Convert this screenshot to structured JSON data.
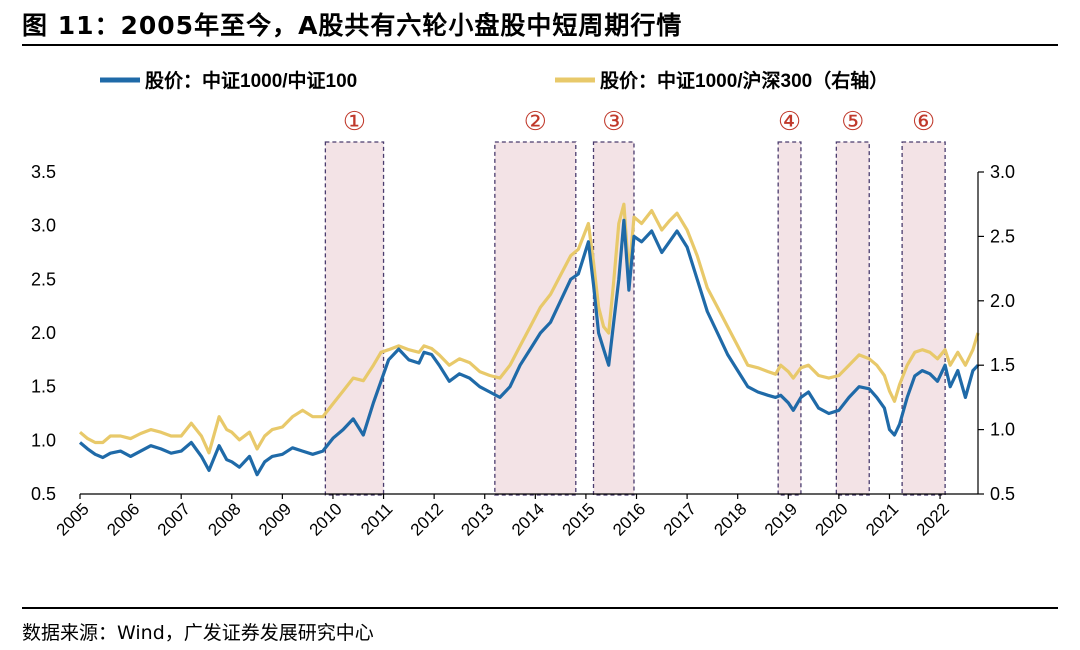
{
  "header": {
    "title": "图 11：2005年至今，A股共有六轮小盘股中短周期行情"
  },
  "footer": {
    "source": "数据来源：Wind，广发证券发展研究中心"
  },
  "colors": {
    "series1": "#1f6aa8",
    "series2": "#e8c96a",
    "highlight_fill": "#f3e3e6",
    "highlight_stroke": "#4a3c6e",
    "marker": "#c0392b"
  },
  "chart_data": {
    "type": "line",
    "title": "2005年至今，A股共有六轮小盘股中短周期行情",
    "x_ticks": [
      "2005",
      "2006",
      "2007",
      "2008",
      "2009",
      "2010",
      "2011",
      "2012",
      "2013",
      "2014",
      "2015",
      "2016",
      "2017",
      "2018",
      "2019",
      "2020",
      "2021",
      "2022"
    ],
    "x_range": [
      2005.0,
      2022.75
    ],
    "y_left": {
      "ticks": [
        "0.5",
        "1.0",
        "1.5",
        "2.0",
        "2.5",
        "3.0",
        "3.5"
      ],
      "range": [
        0.5,
        3.5
      ]
    },
    "y_right": {
      "ticks": [
        "0.5",
        "1.0",
        "1.5",
        "2.0",
        "2.5",
        "3.0"
      ],
      "range": [
        0.5,
        3.0
      ]
    },
    "legend": [
      {
        "label": "股价：中证1000/中证100",
        "axis": "left"
      },
      {
        "label": "股价：中证1000/沪深300（右轴）",
        "axis": "right"
      }
    ],
    "series": [
      {
        "name": "股价：中证1000/中证100",
        "axis": "left",
        "x": [
          2005.0,
          2005.15,
          2005.3,
          2005.45,
          2005.6,
          2005.8,
          2006.0,
          2006.2,
          2006.4,
          2006.6,
          2006.8,
          2007.0,
          2007.2,
          2007.4,
          2007.55,
          2007.75,
          2007.9,
          2008.0,
          2008.15,
          2008.35,
          2008.5,
          2008.65,
          2008.8,
          2009.0,
          2009.2,
          2009.4,
          2009.6,
          2009.8,
          2010.0,
          2010.2,
          2010.4,
          2010.6,
          2010.8,
          2010.95,
          2011.1,
          2011.3,
          2011.5,
          2011.7,
          2011.8,
          2011.95,
          2012.1,
          2012.3,
          2012.5,
          2012.7,
          2012.9,
          2013.1,
          2013.3,
          2013.5,
          2013.7,
          2013.9,
          2014.1,
          2014.3,
          2014.5,
          2014.7,
          2014.85,
          2014.95,
          2015.05,
          2015.15,
          2015.25,
          2015.35,
          2015.45,
          2015.55,
          2015.65,
          2015.75,
          2015.85,
          2015.95,
          2016.1,
          2016.3,
          2016.5,
          2016.65,
          2016.8,
          2017.0,
          2017.2,
          2017.4,
          2017.6,
          2017.8,
          2018.0,
          2018.2,
          2018.4,
          2018.6,
          2018.75,
          2018.85,
          2019.0,
          2019.1,
          2019.25,
          2019.4,
          2019.6,
          2019.8,
          2020.0,
          2020.2,
          2020.4,
          2020.6,
          2020.75,
          2020.9,
          2021.0,
          2021.1,
          2021.2,
          2021.35,
          2021.5,
          2021.65,
          2021.8,
          2021.95,
          2022.1,
          2022.2,
          2022.35,
          2022.5,
          2022.65,
          2022.75
        ],
        "y": [
          0.98,
          0.92,
          0.87,
          0.84,
          0.88,
          0.9,
          0.85,
          0.9,
          0.95,
          0.92,
          0.88,
          0.9,
          0.98,
          0.85,
          0.72,
          0.95,
          0.82,
          0.8,
          0.75,
          0.85,
          0.68,
          0.8,
          0.85,
          0.87,
          0.93,
          0.9,
          0.87,
          0.9,
          1.02,
          1.1,
          1.2,
          1.05,
          1.35,
          1.55,
          1.75,
          1.85,
          1.75,
          1.72,
          1.82,
          1.8,
          1.7,
          1.55,
          1.62,
          1.58,
          1.5,
          1.45,
          1.4,
          1.5,
          1.7,
          1.85,
          2.0,
          2.1,
          2.3,
          2.5,
          2.55,
          2.7,
          2.85,
          2.45,
          2.0,
          1.85,
          1.7,
          2.1,
          2.5,
          3.05,
          2.4,
          2.9,
          2.85,
          2.95,
          2.75,
          2.85,
          2.95,
          2.8,
          2.5,
          2.2,
          2.0,
          1.8,
          1.65,
          1.5,
          1.45,
          1.42,
          1.4,
          1.42,
          1.35,
          1.28,
          1.4,
          1.45,
          1.3,
          1.25,
          1.28,
          1.4,
          1.5,
          1.48,
          1.4,
          1.3,
          1.1,
          1.05,
          1.15,
          1.4,
          1.6,
          1.65,
          1.62,
          1.55,
          1.7,
          1.5,
          1.65,
          1.4,
          1.65,
          1.7
        ]
      },
      {
        "name": "股价：中证1000/沪深300（右轴）",
        "axis": "right",
        "x": [
          2005.0,
          2005.15,
          2005.3,
          2005.45,
          2005.6,
          2005.8,
          2006.0,
          2006.2,
          2006.4,
          2006.6,
          2006.8,
          2007.0,
          2007.2,
          2007.4,
          2007.55,
          2007.75,
          2007.9,
          2008.0,
          2008.15,
          2008.35,
          2008.5,
          2008.65,
          2008.8,
          2009.0,
          2009.2,
          2009.4,
          2009.6,
          2009.8,
          2010.0,
          2010.2,
          2010.4,
          2010.6,
          2010.8,
          2010.95,
          2011.1,
          2011.3,
          2011.5,
          2011.7,
          2011.8,
          2011.95,
          2012.1,
          2012.3,
          2012.5,
          2012.7,
          2012.9,
          2013.1,
          2013.3,
          2013.5,
          2013.7,
          2013.9,
          2014.1,
          2014.3,
          2014.5,
          2014.7,
          2014.85,
          2014.95,
          2015.05,
          2015.15,
          2015.25,
          2015.35,
          2015.45,
          2015.55,
          2015.65,
          2015.75,
          2015.85,
          2015.95,
          2016.1,
          2016.3,
          2016.5,
          2016.65,
          2016.8,
          2017.0,
          2017.2,
          2017.4,
          2017.6,
          2017.8,
          2018.0,
          2018.2,
          2018.4,
          2018.6,
          2018.75,
          2018.85,
          2019.0,
          2019.1,
          2019.25,
          2019.4,
          2019.6,
          2019.8,
          2020.0,
          2020.2,
          2020.4,
          2020.6,
          2020.75,
          2020.9,
          2021.0,
          2021.1,
          2021.2,
          2021.35,
          2021.5,
          2021.65,
          2021.8,
          2021.95,
          2022.1,
          2022.2,
          2022.35,
          2022.5,
          2022.65,
          2022.75
        ],
        "y": [
          0.98,
          0.93,
          0.9,
          0.9,
          0.95,
          0.95,
          0.93,
          0.97,
          1.0,
          0.98,
          0.95,
          0.95,
          1.05,
          0.95,
          0.82,
          1.1,
          1.0,
          0.98,
          0.92,
          0.98,
          0.85,
          0.95,
          1.0,
          1.02,
          1.1,
          1.15,
          1.1,
          1.1,
          1.2,
          1.3,
          1.4,
          1.38,
          1.5,
          1.6,
          1.62,
          1.65,
          1.62,
          1.6,
          1.65,
          1.63,
          1.58,
          1.5,
          1.55,
          1.52,
          1.45,
          1.42,
          1.4,
          1.5,
          1.65,
          1.8,
          1.95,
          2.05,
          2.2,
          2.35,
          2.4,
          2.5,
          2.6,
          2.3,
          1.95,
          1.8,
          1.75,
          2.15,
          2.6,
          2.75,
          2.2,
          2.65,
          2.6,
          2.7,
          2.55,
          2.62,
          2.68,
          2.55,
          2.35,
          2.1,
          1.95,
          1.8,
          1.65,
          1.5,
          1.48,
          1.45,
          1.43,
          1.5,
          1.45,
          1.4,
          1.48,
          1.5,
          1.42,
          1.4,
          1.42,
          1.5,
          1.58,
          1.55,
          1.5,
          1.42,
          1.3,
          1.22,
          1.35,
          1.5,
          1.6,
          1.62,
          1.6,
          1.55,
          1.62,
          1.5,
          1.6,
          1.5,
          1.62,
          1.75
        ]
      }
    ],
    "highlight_periods": [
      {
        "label": "①",
        "start": 2009.85,
        "end": 2011.0
      },
      {
        "label": "②",
        "start": 2013.2,
        "end": 2014.8
      },
      {
        "label": "③",
        "start": 2015.15,
        "end": 2015.95
      },
      {
        "label": "④",
        "start": 2018.8,
        "end": 2019.25
      },
      {
        "label": "⑤",
        "start": 2019.95,
        "end": 2020.6
      },
      {
        "label": "⑥",
        "start": 2021.25,
        "end": 2022.1
      }
    ]
  }
}
